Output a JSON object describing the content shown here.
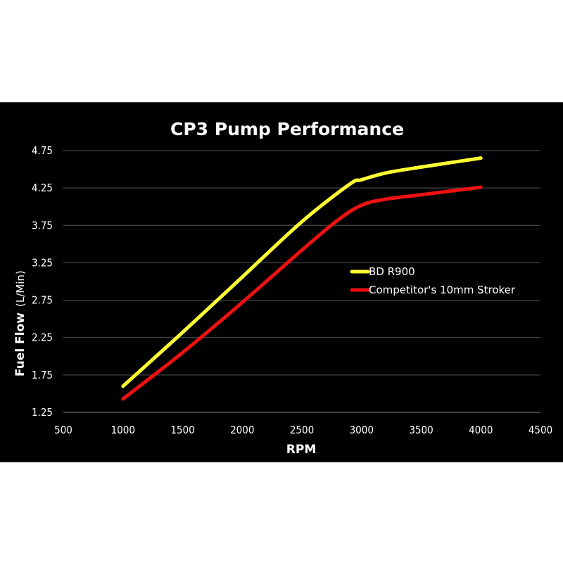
{
  "chart_data": {
    "type": "line",
    "title": "CP3 Pump Performance",
    "xlabel": "RPM",
    "ylabel": "Fuel Flow",
    "ylabel_unit": "(L/Min)",
    "xlim": [
      500,
      4500
    ],
    "ylim": [
      1.25,
      4.75
    ],
    "xticks": [
      500,
      1000,
      1500,
      2000,
      2500,
      3000,
      3500,
      4000,
      4500
    ],
    "yticks": [
      "1.25",
      "1.75",
      "2.25",
      "2.75",
      "3.25",
      "3.75",
      "4.25",
      "4.75"
    ],
    "grid": "horizontal",
    "legend_placement": "right-center",
    "background": "#000000",
    "series": [
      {
        "name": "BD R900",
        "color": "#ffff33",
        "x": [
          1000,
          1500,
          2000,
          2500,
          2900,
          3000,
          3200,
          3500,
          4000
        ],
        "y": [
          1.6,
          2.32,
          3.06,
          3.8,
          4.3,
          4.36,
          4.45,
          4.53,
          4.65
        ]
      },
      {
        "name": "Competitor's 10mm Stroker",
        "color": "#ee1111",
        "x": [
          1000,
          1500,
          2000,
          2500,
          2800,
          3000,
          3200,
          3500,
          4000
        ],
        "y": [
          1.43,
          2.05,
          2.72,
          3.42,
          3.82,
          4.02,
          4.1,
          4.16,
          4.26
        ]
      }
    ]
  }
}
